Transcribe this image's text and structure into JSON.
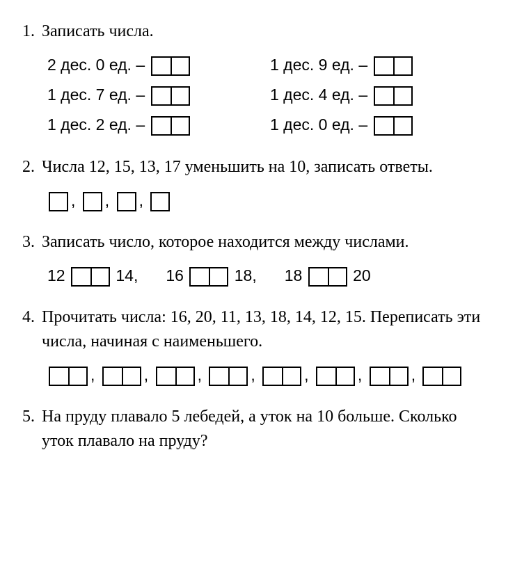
{
  "task1": {
    "num": "1.",
    "title": "Записать числа.",
    "rows": [
      {
        "left": {
          "des": "2",
          "ed": "0"
        },
        "right": {
          "des": "1",
          "ed": "9"
        }
      },
      {
        "left": {
          "des": "1",
          "ed": "7"
        },
        "right": {
          "des": "1",
          "ed": "4"
        }
      },
      {
        "left": {
          "des": "1",
          "ed": "2"
        },
        "right": {
          "des": "1",
          "ed": "0"
        }
      }
    ],
    "labels": {
      "des": "дес.",
      "ed": "ед.",
      "dash": "–"
    }
  },
  "task2": {
    "num": "2.",
    "title": "Числа 12, 15, 13, 17 уменьшить на 10, записать ответы.",
    "box_count": 4,
    "comma": ","
  },
  "task3": {
    "num": "3.",
    "title": "Записать число, которое находится между числами.",
    "groups": [
      {
        "a": "12",
        "b": "14",
        "tail": ","
      },
      {
        "a": "16",
        "b": "18",
        "tail": ","
      },
      {
        "a": "18",
        "b": "20",
        "tail": ""
      }
    ]
  },
  "task4": {
    "num": "4.",
    "title": "Прочитать числа: 16, 20, 11, 13, 18, 14, 12, 15. Переписать эти числа, начиная с наименьшего.",
    "box_count": 8,
    "comma": ","
  },
  "task5": {
    "num": "5.",
    "title": "На пруду плавало 5 лебедей, а уток на 10 больше. Сколько уток плавало на пруду?"
  }
}
